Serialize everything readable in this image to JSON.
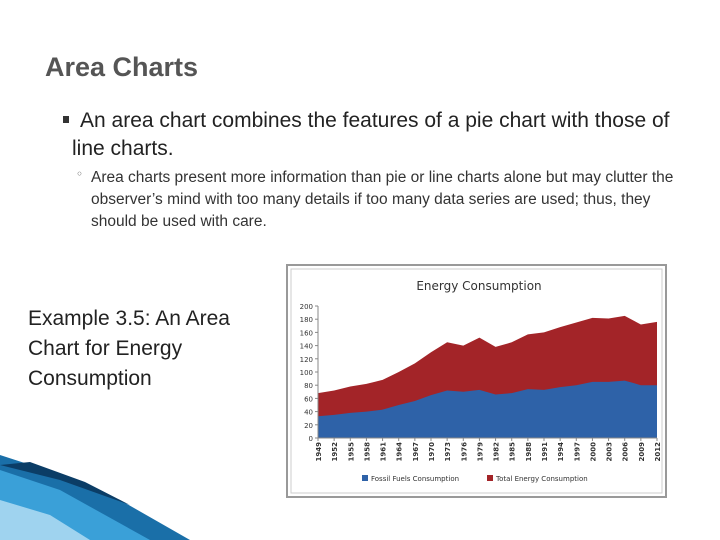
{
  "slide": {
    "title": "Area Charts",
    "bullet": "An area chart combines the features of a pie chart with those of line charts.",
    "sub_bullet": "Area charts present more information than pie or line charts alone but may clutter the observer’s mind with too many details if too many data series are used; thus, they should be used with care.",
    "caption": "Example 3.5: An Area Chart for Energy Consumption"
  },
  "chart_data": {
    "type": "area",
    "title": "Energy Consumption",
    "x": [
      1949,
      1952,
      1955,
      1958,
      1961,
      1964,
      1967,
      1970,
      1973,
      1976,
      1979,
      1982,
      1985,
      1988,
      1991,
      1994,
      1997,
      2000,
      2003,
      2006,
      2009,
      2012
    ],
    "series": [
      {
        "name": "Total Energy Consumption",
        "color": "#a32428",
        "values": [
          68,
          72,
          78,
          82,
          88,
          100,
          113,
          130,
          145,
          140,
          152,
          138,
          145,
          157,
          160,
          168,
          175,
          182,
          181,
          185,
          172,
          176
        ]
      },
      {
        "name": "Fossil Fuels Consumption",
        "color": "#2e62a8",
        "values": [
          33,
          35,
          38,
          40,
          43,
          50,
          56,
          65,
          72,
          70,
          73,
          66,
          68,
          74,
          73,
          77,
          80,
          85,
          85,
          87,
          80,
          80
        ]
      }
    ],
    "legend_order": [
      1,
      0
    ],
    "xlim": [
      1949,
      2012
    ],
    "xticks": [
      1949,
      1952,
      1955,
      1958,
      1961,
      1964,
      1967,
      1970,
      1973,
      1976,
      1979,
      1982,
      1985,
      1988,
      1991,
      1994,
      1997,
      2000,
      2003,
      2006,
      2009,
      2012
    ],
    "ylim": [
      0,
      200
    ],
    "yticks": [
      0,
      20,
      40,
      60,
      80,
      100,
      120,
      140,
      160,
      180,
      200
    ],
    "grid": false,
    "legend": "bottom"
  }
}
